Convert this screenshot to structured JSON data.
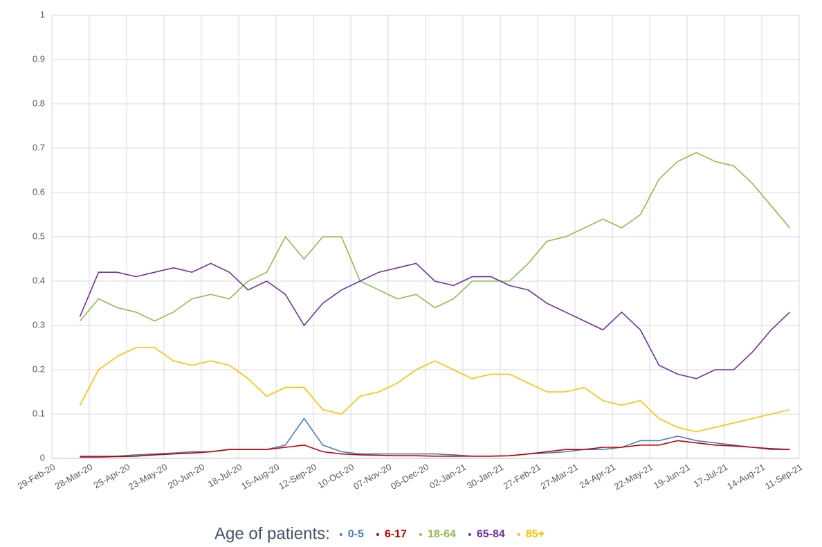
{
  "chart_data": {
    "type": "line",
    "x": [
      "21-Mar-20",
      "04-Apr-20",
      "18-Apr-20",
      "02-May-20",
      "16-May-20",
      "30-May-20",
      "13-Jun-20",
      "27-Jun-20",
      "11-Jul-20",
      "25-Jul-20",
      "08-Aug-20",
      "22-Aug-20",
      "05-Sep-20",
      "19-Sep-20",
      "03-Oct-20",
      "17-Oct-20",
      "31-Oct-20",
      "14-Nov-20",
      "28-Nov-20",
      "12-Dec-20",
      "26-Dec-20",
      "09-Jan-21",
      "23-Jan-21",
      "06-Feb-21",
      "20-Feb-21",
      "06-Mar-21",
      "20-Mar-21",
      "03-Apr-21",
      "17-Apr-21",
      "01-May-21",
      "15-May-21",
      "29-May-21",
      "12-Jun-21",
      "26-Jun-21",
      "10-Jul-21",
      "24-Jul-21",
      "07-Aug-21",
      "21-Aug-21",
      "04-Sep-21"
    ],
    "series": [
      {
        "name": "0-5",
        "color": "#4a7ebb",
        "values": [
          0.005,
          0.005,
          0.005,
          0.008,
          0.01,
          0.012,
          0.015,
          0.015,
          0.02,
          0.02,
          0.02,
          0.03,
          0.09,
          0.03,
          0.015,
          0.01,
          0.01,
          0.01,
          0.01,
          0.01,
          0.008,
          0.005,
          0.005,
          0.006,
          0.01,
          0.012,
          0.015,
          0.02,
          0.02,
          0.025,
          0.04,
          0.04,
          0.05,
          0.04,
          0.035,
          0.03,
          0.025,
          0.02,
          0.02
        ]
      },
      {
        "name": "6-17",
        "color": "#c00000",
        "values": [
          0.003,
          0.003,
          0.004,
          0.005,
          0.008,
          0.01,
          0.012,
          0.015,
          0.02,
          0.02,
          0.02,
          0.025,
          0.03,
          0.015,
          0.01,
          0.008,
          0.007,
          0.006,
          0.006,
          0.005,
          0.005,
          0.005,
          0.005,
          0.006,
          0.01,
          0.015,
          0.02,
          0.02,
          0.025,
          0.025,
          0.03,
          0.03,
          0.04,
          0.035,
          0.03,
          0.028,
          0.025,
          0.022,
          0.02
        ]
      },
      {
        "name": "18-64",
        "color": "#8fbc4f",
        "values": [
          0.31,
          0.36,
          0.34,
          0.33,
          0.31,
          0.33,
          0.36,
          0.37,
          0.36,
          0.4,
          0.42,
          0.5,
          0.45,
          0.5,
          0.5,
          0.4,
          0.38,
          0.36,
          0.37,
          0.34,
          0.36,
          0.4,
          0.4,
          0.4,
          0.44,
          0.49,
          0.5,
          0.52,
          0.54,
          0.52,
          0.55,
          0.63,
          0.67,
          0.69,
          0.67,
          0.66,
          0.62,
          0.57,
          0.52
        ]
      },
      {
        "name": "65-84",
        "color": "#7030a0",
        "values": [
          0.32,
          0.42,
          0.42,
          0.41,
          0.42,
          0.43,
          0.42,
          0.44,
          0.42,
          0.38,
          0.4,
          0.37,
          0.3,
          0.35,
          0.38,
          0.4,
          0.42,
          0.43,
          0.44,
          0.4,
          0.39,
          0.41,
          0.41,
          0.39,
          0.38,
          0.35,
          0.33,
          0.31,
          0.29,
          0.33,
          0.29,
          0.21,
          0.19,
          0.18,
          0.2,
          0.2,
          0.24,
          0.29,
          0.33
        ]
      },
      {
        "name": "85+",
        "color": "#ffc000",
        "values": [
          0.12,
          0.2,
          0.23,
          0.25,
          0.25,
          0.22,
          0.21,
          0.22,
          0.21,
          0.18,
          0.14,
          0.16,
          0.16,
          0.11,
          0.1,
          0.14,
          0.15,
          0.17,
          0.2,
          0.22,
          0.2,
          0.18,
          0.19,
          0.19,
          0.17,
          0.15,
          0.15,
          0.16,
          0.13,
          0.12,
          0.13,
          0.09,
          0.07,
          0.06,
          0.07,
          0.08,
          0.09,
          0.1,
          0.11
        ]
      }
    ],
    "legend_title": "Age of patients:",
    "xlim": [
      "29-Feb-20",
      "11-Sep-21"
    ],
    "xticks": [
      "29-Feb-20",
      "28-Mar-20",
      "25-Apr-20",
      "23-May-20",
      "20-Jun-20",
      "18-Jul-20",
      "15-Aug-20",
      "12-Sep-20",
      "10-Oct-20",
      "07-Nov-20",
      "05-Dec-20",
      "02-Jan-21",
      "30-Jan-21",
      "27-Feb-21",
      "27-Mar-21",
      "24-Apr-21",
      "22-May-21",
      "19-Jun-21",
      "17-Jul-21",
      "14-Aug-21",
      "11-Sep-21"
    ],
    "ylim": [
      0,
      1
    ],
    "yticks": [
      0,
      0.1,
      0.2,
      0.3,
      0.4,
      0.5,
      0.6,
      0.7,
      0.8,
      0.9,
      1
    ],
    "grid": true
  }
}
